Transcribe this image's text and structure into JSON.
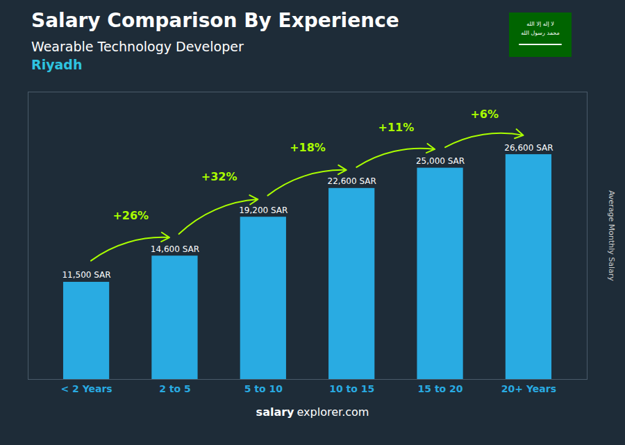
{
  "chart_data": {
    "type": "bar",
    "title": "Salary Comparison By Experience",
    "subtitle": "Wearable Technology Developer",
    "city": "Riyadh",
    "ylabel": "Average Monthly Salary",
    "footer": [
      "salary",
      "explorer.com"
    ],
    "flag_text": [
      "لا إله إلا الله",
      "محمد رسول الله"
    ],
    "categories": [
      "< 2 Years",
      "2 to 5",
      "5 to 10",
      "10 to 15",
      "15 to 20",
      "20+ Years"
    ],
    "values": [
      11500,
      14600,
      19200,
      22600,
      25000,
      26600
    ],
    "value_labels": [
      "11,500 SAR",
      "14,600 SAR",
      "19,200 SAR",
      "22,600 SAR",
      "25,000 SAR",
      "26,600 SAR"
    ],
    "data_labels": true,
    "change_labels": [
      null,
      "+26%",
      "+32%",
      "+18%",
      "+11%",
      "+6%"
    ],
    "color": "#29ABE2",
    "ylim": [
      0,
      34000
    ],
    "tick_labels": "x",
    "grid": false
  }
}
